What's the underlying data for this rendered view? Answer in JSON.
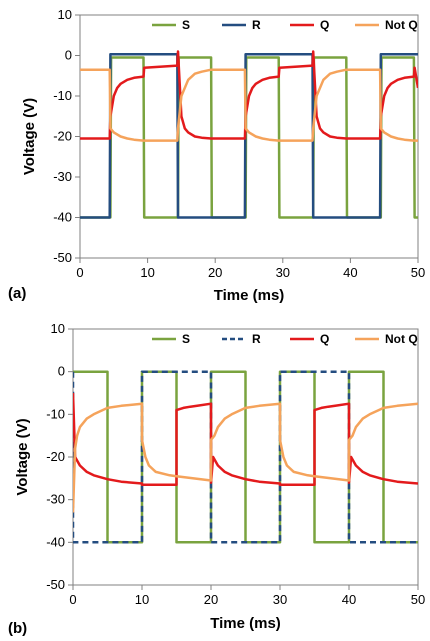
{
  "colors": {
    "S": "#7aa33f",
    "R": "#244d80",
    "Q": "#e31a1c",
    "NotQ": "#f5a35b"
  },
  "chart_data": [
    {
      "panel_label": "(a)",
      "type": "line",
      "xlabel": "Time (ms)",
      "ylabel": "Voltage (V)",
      "xlim": [
        0,
        50
      ],
      "ylim": [
        -50,
        10
      ],
      "xticks": [
        "0",
        "10",
        "20",
        "30",
        "40",
        "50"
      ],
      "yticks": [
        "10",
        "0",
        "-10",
        "-20",
        "-30",
        "-40",
        "-50"
      ],
      "grid": false,
      "legend": {
        "placement": "top",
        "entries": [
          "S",
          "R",
          "Q",
          "Not Q"
        ]
      },
      "series": [
        {
          "name": "S",
          "style": "solid",
          "color": "#7aa33f",
          "x": [
            0,
            4.5,
            4.6,
            9.4,
            9.5,
            14.5,
            14.6,
            19.4,
            19.5,
            24.5,
            24.6,
            29.4,
            29.5,
            34.5,
            34.6,
            39.4,
            39.5,
            44.5,
            44.6,
            49.4,
            49.5,
            50
          ],
          "y": [
            -40,
            -40,
            -0.5,
            -0.5,
            -40,
            -40,
            -0.5,
            -0.5,
            -40,
            -40,
            -0.5,
            -0.5,
            -40,
            -40,
            -0.5,
            -0.5,
            -40,
            -40,
            -0.5,
            -0.5,
            -40,
            -40
          ]
        },
        {
          "name": "R",
          "style": "solid",
          "color": "#244d80",
          "x": [
            0,
            4.4,
            4.5,
            14.4,
            14.5,
            24.4,
            24.5,
            34.4,
            34.5,
            44.4,
            44.5,
            50
          ],
          "y": [
            -40,
            -40,
            0.3,
            0.3,
            -40,
            -40,
            0.3,
            0.3,
            -40,
            -40,
            0.3,
            0.3
          ]
        },
        {
          "name": "Q",
          "style": "solid",
          "color": "#e31a1c",
          "x": [
            0,
            4.4,
            4.5,
            5,
            5.5,
            6,
            7,
            8,
            9.4,
            9.5,
            14.4,
            14.5,
            15,
            15.5,
            16,
            17,
            18,
            19.4,
            19.5,
            24.4,
            24.5,
            25,
            25.5,
            26,
            27,
            28,
            29.4,
            29.5,
            34.4,
            34.5,
            35,
            35.5,
            36,
            37,
            38,
            39.4,
            39.5,
            44.4,
            44.5,
            45,
            45.5,
            46,
            47,
            48,
            49.4,
            49.5,
            50
          ],
          "y": [
            -20.5,
            -20.5,
            -15,
            -10,
            -8,
            -7,
            -6,
            -5.5,
            -5.2,
            -3,
            -2.5,
            1,
            -15,
            -18,
            -19,
            -20,
            -20.3,
            -20.5,
            -20.5,
            -20.5,
            -15,
            -10,
            -8,
            -7,
            -6,
            -5.5,
            -5.2,
            -3,
            -2.5,
            1,
            -15,
            -18,
            -19,
            -20,
            -20.3,
            -20.5,
            -20.5,
            -20.5,
            -15,
            -10,
            -8,
            -7,
            -6,
            -5.5,
            -5.2,
            -3,
            -8
          ]
        },
        {
          "name": "Not Q",
          "style": "solid",
          "color": "#f5a35b",
          "x": [
            0,
            4.4,
            4.5,
            5,
            6,
            7,
            8,
            9.4,
            9.5,
            14.4,
            14.5,
            15,
            16,
            17,
            18,
            19.4,
            19.5,
            24.4,
            24.5,
            25,
            26,
            27,
            28,
            29.4,
            29.5,
            34.4,
            34.5,
            35,
            36,
            37,
            38,
            39.4,
            39.5,
            44.4,
            44.5,
            45,
            46,
            47,
            48,
            49.4,
            49.5,
            50
          ],
          "y": [
            -3.5,
            -3.5,
            -18,
            -19,
            -20,
            -20.5,
            -20.8,
            -21,
            -21,
            -21,
            -18,
            -10,
            -6,
            -4.5,
            -4,
            -3.5,
            -3.5,
            -3.5,
            -18,
            -19,
            -20,
            -20.5,
            -20.8,
            -21,
            -21,
            -21,
            -18,
            -10,
            -6,
            -4.5,
            -4,
            -3.5,
            -3.5,
            -3.5,
            -18,
            -19,
            -20,
            -20.5,
            -20.8,
            -21,
            -21,
            -21
          ]
        }
      ]
    },
    {
      "panel_label": "(b)",
      "type": "line",
      "xlabel": "Time (ms)",
      "ylabel": "Voltage (V)",
      "xlim": [
        0,
        50
      ],
      "ylim": [
        -50,
        10
      ],
      "xticks": [
        "0",
        "10",
        "20",
        "30",
        "40",
        "50"
      ],
      "yticks": [
        "10",
        "0",
        "-10",
        "-20",
        "-30",
        "-40",
        "-50"
      ],
      "grid": false,
      "legend": {
        "placement": "top",
        "entries": [
          "S",
          "R",
          "Q",
          "Not Q"
        ]
      },
      "series": [
        {
          "name": "S",
          "style": "solid",
          "color": "#7aa33f",
          "x": [
            0,
            5,
            5,
            10,
            10,
            15,
            15,
            20,
            20,
            25,
            25,
            30,
            30,
            35,
            35,
            40,
            40,
            45,
            45,
            50
          ],
          "y": [
            0,
            0,
            -40,
            -40,
            0,
            0,
            -40,
            -40,
            0,
            0,
            -40,
            -40,
            0,
            0,
            -40,
            -40,
            0,
            0,
            -40,
            -40
          ]
        },
        {
          "name": "R",
          "style": "dashed",
          "color": "#244d80",
          "x": [
            0,
            0,
            10,
            10,
            20,
            20,
            30,
            30,
            40,
            40,
            50
          ],
          "y": [
            0,
            -40,
            -40,
            0,
            0,
            -40,
            -40,
            0,
            0,
            -40,
            -40
          ]
        },
        {
          "name": "Q",
          "style": "solid",
          "color": "#e31a1c",
          "x": [
            0,
            0.3,
            1,
            2,
            3,
            5,
            7,
            10,
            10,
            15,
            15,
            16,
            17,
            18,
            20,
            20,
            20.3,
            21,
            22,
            23,
            25,
            27,
            30,
            30,
            35,
            35,
            36,
            37,
            38,
            40,
            40,
            40.3,
            41,
            42,
            43,
            45,
            47,
            50
          ],
          "y": [
            -5,
            -20,
            -22,
            -23.5,
            -24.3,
            -25.2,
            -25.8,
            -26.2,
            -26.5,
            -26.5,
            -9,
            -8.5,
            -8.2,
            -8,
            -7.5,
            -26,
            -20,
            -22,
            -23.5,
            -24.3,
            -25.2,
            -25.8,
            -26.2,
            -26.5,
            -26.5,
            -9,
            -8.5,
            -8.2,
            -8,
            -7.5,
            -26,
            -20,
            -22,
            -23.5,
            -24.3,
            -25.2,
            -25.8,
            -26.2
          ]
        },
        {
          "name": "Not Q",
          "style": "solid",
          "color": "#f5a35b",
          "x": [
            0,
            0.3,
            0.6,
            1,
            2,
            3,
            5,
            7,
            10,
            10,
            10.5,
            11,
            12,
            14,
            15,
            15,
            20,
            20,
            20.5,
            21,
            22,
            23,
            25,
            27,
            30,
            30,
            30.5,
            31,
            32,
            34,
            35,
            35,
            40,
            40,
            40.5,
            41,
            42,
            43,
            45,
            47,
            50
          ],
          "y": [
            -33,
            -18,
            -15,
            -13,
            -11,
            -10,
            -8.5,
            -8,
            -7.5,
            -16,
            -20,
            -22,
            -23.5,
            -24.3,
            -24.5,
            -24.5,
            -25.5,
            -16,
            -15,
            -13,
            -11,
            -10,
            -8.5,
            -8,
            -7.5,
            -16,
            -20,
            -22,
            -23.5,
            -24.3,
            -24.5,
            -24.5,
            -25.5,
            -16,
            -15,
            -13,
            -11,
            -10,
            -8.5,
            -8,
            -7.5
          ]
        }
      ]
    }
  ]
}
